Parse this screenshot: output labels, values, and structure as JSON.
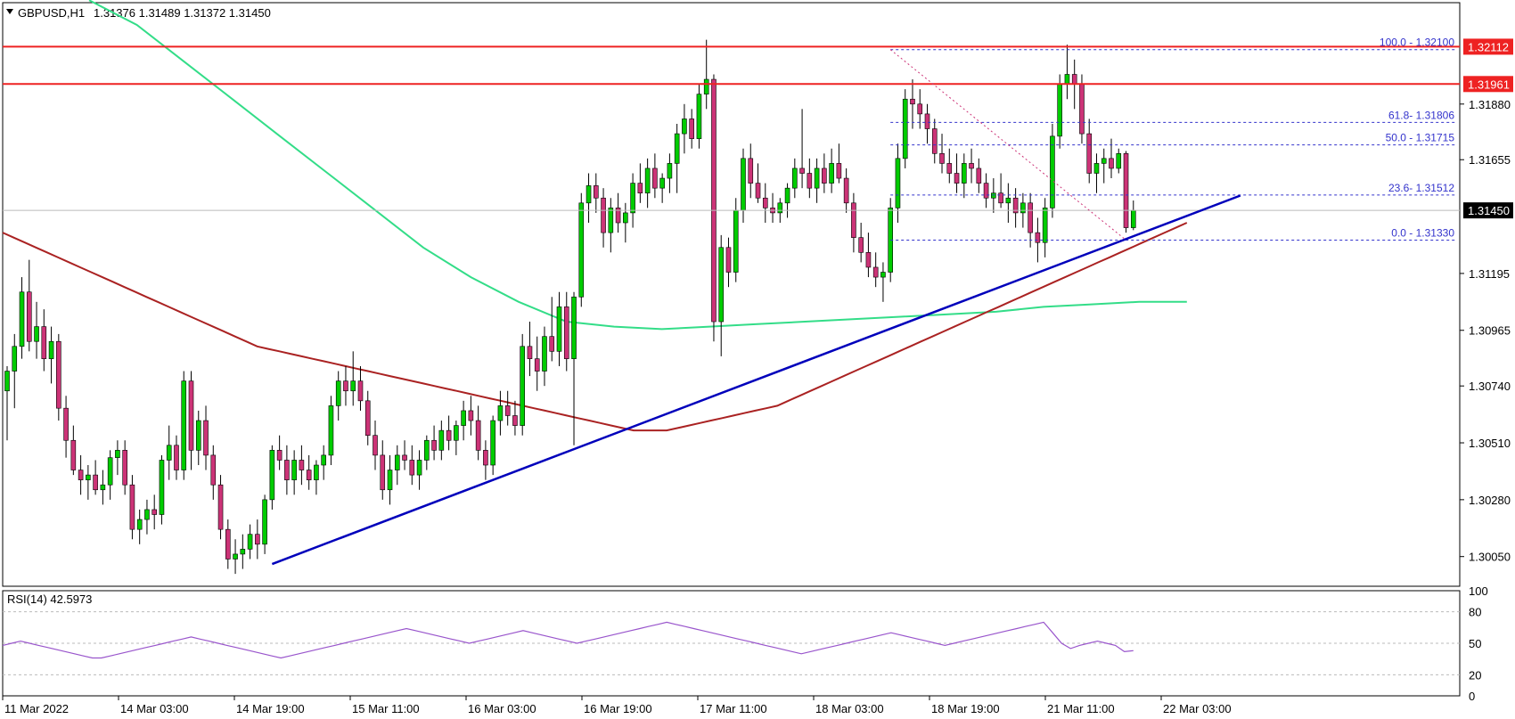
{
  "header": {
    "symbol": "GBPUSD,H1",
    "ohlc": "1.31376 1.31489 1.31372 1.31450"
  },
  "colors": {
    "bull": "#00cc00",
    "bear": "#cc3377",
    "wick": "#000000",
    "ema50": "#aa2222",
    "ema200": "#33dd88",
    "resistance": "#ee2222",
    "trendline": "#0000bb",
    "fib": "#3333cc",
    "rsi": "#9955cc",
    "current_price_bg": "#000000",
    "resistance_label_bg": "#ee2222"
  },
  "chart_data": [
    {
      "type": "candlestick",
      "title": "GBPUSD,H1",
      "x_ticks": [
        "11 Mar 2022",
        "14 Mar 03:00",
        "14 Mar 19:00",
        "15 Mar 11:00",
        "16 Mar 03:00",
        "16 Mar 19:00",
        "17 Mar 11:00",
        "18 Mar 03:00",
        "18 Mar 19:00",
        "21 Mar 11:00",
        "22 Mar 03:00"
      ],
      "y_ticks": [
        "1.31880",
        "1.31655",
        "1.31195",
        "1.30965",
        "1.30740",
        "1.30510",
        "1.30280",
        "1.30050"
      ],
      "ylim": [
        1.2993,
        1.3229
      ],
      "current_price": "1.31450",
      "resistance_levels": [
        {
          "price": 1.32112,
          "label": "1.32112"
        },
        {
          "price": 1.31961,
          "label": "1.31961"
        }
      ],
      "fibonacci": [
        {
          "level": "100.0",
          "price": 1.321,
          "label": "100.0 - 1.32100"
        },
        {
          "level": "61.8",
          "price": 1.31806,
          "label": "61.8- 1.31806"
        },
        {
          "level": "50.0",
          "price": 1.31715,
          "label": "50.0 - 1.31715"
        },
        {
          "level": "23.6",
          "price": 1.31512,
          "label": "23.6- 1.31512"
        },
        {
          "level": "0.0",
          "price": 1.3133,
          "label": "0.0 - 1.31330"
        }
      ],
      "trendline": {
        "start": [
          0,
          1.3002
        ],
        "end": [
          185,
          1.3151
        ]
      },
      "candles": [
        [
          1.3072,
          1.3082,
          1.3052,
          1.308
        ],
        [
          1.308,
          1.3095,
          1.3065,
          1.309
        ],
        [
          1.309,
          1.3118,
          1.3085,
          1.3112
        ],
        [
          1.3112,
          1.3125,
          1.3088,
          1.3092
        ],
        [
          1.3092,
          1.3108,
          1.3085,
          1.3098
        ],
        [
          1.3098,
          1.3105,
          1.308,
          1.3085
        ],
        [
          1.3085,
          1.3098,
          1.3075,
          1.3092
        ],
        [
          1.3092,
          1.3095,
          1.306,
          1.3065
        ],
        [
          1.3065,
          1.307,
          1.3045,
          1.3052
        ],
        [
          1.3052,
          1.3058,
          1.3038,
          1.304
        ],
        [
          1.304,
          1.3046,
          1.303,
          1.3036
        ],
        [
          1.3036,
          1.3042,
          1.3028,
          1.3038
        ],
        [
          1.3038,
          1.3044,
          1.303,
          1.3032
        ],
        [
          1.3032,
          1.304,
          1.3026,
          1.3034
        ],
        [
          1.3034,
          1.3048,
          1.3028,
          1.3045
        ],
        [
          1.3045,
          1.3052,
          1.3038,
          1.3048
        ],
        [
          1.3048,
          1.3052,
          1.303,
          1.3034
        ],
        [
          1.3034,
          1.3038,
          1.3012,
          1.3016
        ],
        [
          1.3016,
          1.3024,
          1.301,
          1.302
        ],
        [
          1.302,
          1.3028,
          1.3014,
          1.3024
        ],
        [
          1.3024,
          1.303,
          1.3016,
          1.3022
        ],
        [
          1.3022,
          1.3046,
          1.3018,
          1.3044
        ],
        [
          1.3044,
          1.3058,
          1.3036,
          1.305
        ],
        [
          1.305,
          1.3054,
          1.3036,
          1.304
        ],
        [
          1.304,
          1.308,
          1.3036,
          1.3076
        ],
        [
          1.3076,
          1.308,
          1.304,
          1.3048
        ],
        [
          1.3048,
          1.3064,
          1.3042,
          1.306
        ],
        [
          1.306,
          1.3066,
          1.304,
          1.3046
        ],
        [
          1.3046,
          1.305,
          1.3028,
          1.3034
        ],
        [
          1.3034,
          1.3038,
          1.3012,
          1.3016
        ],
        [
          1.3016,
          1.302,
          1.3,
          1.3004
        ],
        [
          1.3004,
          1.3012,
          1.2998,
          1.3006
        ],
        [
          1.3006,
          1.3014,
          1.3,
          1.3008
        ],
        [
          1.3008,
          1.3018,
          1.3004,
          1.3014
        ],
        [
          1.3014,
          1.302,
          1.3004,
          1.301
        ],
        [
          1.301,
          1.303,
          1.3006,
          1.3028
        ],
        [
          1.3028,
          1.305,
          1.3024,
          1.3048
        ],
        [
          1.3048,
          1.3054,
          1.304,
          1.3044
        ],
        [
          1.3044,
          1.305,
          1.303,
          1.3036
        ],
        [
          1.3036,
          1.3048,
          1.303,
          1.3044
        ],
        [
          1.3044,
          1.305,
          1.3034,
          1.304
        ],
        [
          1.304,
          1.3046,
          1.3032,
          1.3036
        ],
        [
          1.3036,
          1.3044,
          1.303,
          1.3042
        ],
        [
          1.3042,
          1.305,
          1.3036,
          1.3046
        ],
        [
          1.3046,
          1.307,
          1.3042,
          1.3066
        ],
        [
          1.3066,
          1.308,
          1.306,
          1.3076
        ],
        [
          1.3076,
          1.3082,
          1.3066,
          1.3072
        ],
        [
          1.3072,
          1.3088,
          1.3066,
          1.3076
        ],
        [
          1.3076,
          1.3082,
          1.3064,
          1.3068
        ],
        [
          1.3068,
          1.3072,
          1.305,
          1.3054
        ],
        [
          1.3054,
          1.306,
          1.304,
          1.3046
        ],
        [
          1.3046,
          1.3052,
          1.3028,
          1.3032
        ],
        [
          1.3032,
          1.3046,
          1.3026,
          1.304
        ],
        [
          1.304,
          1.305,
          1.3034,
          1.3046
        ],
        [
          1.3046,
          1.3052,
          1.304,
          1.3044
        ],
        [
          1.3044,
          1.305,
          1.3034,
          1.3038
        ],
        [
          1.3038,
          1.3048,
          1.3032,
          1.3044
        ],
        [
          1.3044,
          1.3054,
          1.304,
          1.3052
        ],
        [
          1.3052,
          1.3058,
          1.3044,
          1.3048
        ],
        [
          1.3048,
          1.306,
          1.3044,
          1.3056
        ],
        [
          1.3056,
          1.3062,
          1.3048,
          1.3052
        ],
        [
          1.3052,
          1.306,
          1.3046,
          1.3058
        ],
        [
          1.3058,
          1.3068,
          1.3052,
          1.3064
        ],
        [
          1.3064,
          1.307,
          1.3054,
          1.306
        ],
        [
          1.306,
          1.3066,
          1.3044,
          1.3048
        ],
        [
          1.3048,
          1.3052,
          1.3036,
          1.3042
        ],
        [
          1.3042,
          1.3062,
          1.3038,
          1.306
        ],
        [
          1.306,
          1.3072,
          1.3054,
          1.3066
        ],
        [
          1.3066,
          1.3072,
          1.3058,
          1.3062
        ],
        [
          1.3062,
          1.3068,
          1.3054,
          1.3058
        ],
        [
          1.3058,
          1.3095,
          1.3054,
          1.309
        ],
        [
          1.309,
          1.31,
          1.3078,
          1.3085
        ],
        [
          1.3085,
          1.3094,
          1.3072,
          1.308
        ],
        [
          1.308,
          1.3098,
          1.3074,
          1.3094
        ],
        [
          1.3094,
          1.311,
          1.3084,
          1.3088
        ],
        [
          1.3088,
          1.3112,
          1.3082,
          1.3106
        ],
        [
          1.3106,
          1.3112,
          1.308,
          1.3085
        ],
        [
          1.3085,
          1.3112,
          1.305,
          1.311
        ],
        [
          1.311,
          1.3152,
          1.3106,
          1.3148
        ],
        [
          1.3148,
          1.316,
          1.314,
          1.3155
        ],
        [
          1.3155,
          1.316,
          1.3144,
          1.315
        ],
        [
          1.315,
          1.3154,
          1.313,
          1.3136
        ],
        [
          1.3136,
          1.315,
          1.3128,
          1.3146
        ],
        [
          1.3146,
          1.3152,
          1.3136,
          1.314
        ],
        [
          1.314,
          1.3148,
          1.3132,
          1.3144
        ],
        [
          1.3144,
          1.316,
          1.3138,
          1.3156
        ],
        [
          1.3156,
          1.3164,
          1.3148,
          1.3152
        ],
        [
          1.3152,
          1.3166,
          1.3146,
          1.3162
        ],
        [
          1.3162,
          1.3168,
          1.315,
          1.3154
        ],
        [
          1.3154,
          1.316,
          1.3148,
          1.3158
        ],
        [
          1.3158,
          1.3168,
          1.3152,
          1.3164
        ],
        [
          1.3164,
          1.318,
          1.3152,
          1.3176
        ],
        [
          1.3176,
          1.3188,
          1.3168,
          1.3182
        ],
        [
          1.3182,
          1.3186,
          1.317,
          1.3174
        ],
        [
          1.3174,
          1.3196,
          1.317,
          1.3192
        ],
        [
          1.3192,
          1.3214,
          1.3186,
          1.3198
        ],
        [
          1.3198,
          1.32,
          1.3092,
          1.31
        ],
        [
          1.31,
          1.3135,
          1.3086,
          1.313
        ],
        [
          1.313,
          1.3134,
          1.3114,
          1.312
        ],
        [
          1.312,
          1.315,
          1.3116,
          1.3145
        ],
        [
          1.3145,
          1.317,
          1.314,
          1.3166
        ],
        [
          1.3166,
          1.3172,
          1.315,
          1.3156
        ],
        [
          1.3156,
          1.3164,
          1.3148,
          1.315
        ],
        [
          1.315,
          1.3156,
          1.314,
          1.3146
        ],
        [
          1.3146,
          1.3152,
          1.314,
          1.3144
        ],
        [
          1.3144,
          1.315,
          1.314,
          1.3148
        ],
        [
          1.3148,
          1.3156,
          1.3142,
          1.3154
        ],
        [
          1.3154,
          1.3166,
          1.315,
          1.3162
        ],
        [
          1.3162,
          1.3186,
          1.3154,
          1.316
        ],
        [
          1.316,
          1.3166,
          1.315,
          1.3154
        ],
        [
          1.3154,
          1.3166,
          1.3148,
          1.3162
        ],
        [
          1.3162,
          1.3168,
          1.3152,
          1.3156
        ],
        [
          1.3156,
          1.317,
          1.3152,
          1.3164
        ],
        [
          1.3164,
          1.3172,
          1.3156,
          1.3158
        ],
        [
          1.3158,
          1.3162,
          1.3144,
          1.3148
        ],
        [
          1.3148,
          1.3152,
          1.3128,
          1.3134
        ],
        [
          1.3134,
          1.314,
          1.3124,
          1.3128
        ],
        [
          1.3128,
          1.3136,
          1.3118,
          1.3122
        ],
        [
          1.3122,
          1.3128,
          1.3114,
          1.3118
        ],
        [
          1.3118,
          1.3124,
          1.3108,
          1.312
        ],
        [
          1.312,
          1.315,
          1.3116,
          1.3146
        ],
        [
          1.3146,
          1.3172,
          1.314,
          1.3166
        ],
        [
          1.3166,
          1.3194,
          1.3162,
          1.319
        ],
        [
          1.319,
          1.3198,
          1.3178,
          1.3188
        ],
        [
          1.3188,
          1.3194,
          1.3178,
          1.3184
        ],
        [
          1.3184,
          1.3188,
          1.3172,
          1.3178
        ],
        [
          1.3178,
          1.3182,
          1.3164,
          1.3168
        ],
        [
          1.3168,
          1.3176,
          1.316,
          1.3164
        ],
        [
          1.3164,
          1.317,
          1.3156,
          1.316
        ],
        [
          1.316,
          1.3168,
          1.3152,
          1.3156
        ],
        [
          1.3156,
          1.3168,
          1.315,
          1.3164
        ],
        [
          1.3164,
          1.317,
          1.3156,
          1.3162
        ],
        [
          1.3162,
          1.3166,
          1.3152,
          1.3156
        ],
        [
          1.3156,
          1.316,
          1.3146,
          1.315
        ],
        [
          1.315,
          1.3158,
          1.3144,
          1.3152
        ],
        [
          1.3152,
          1.316,
          1.3146,
          1.3148
        ],
        [
          1.3148,
          1.3156,
          1.314,
          1.315
        ],
        [
          1.315,
          1.3154,
          1.3138,
          1.3144
        ],
        [
          1.3144,
          1.3152,
          1.3138,
          1.3148
        ],
        [
          1.3148,
          1.3152,
          1.313,
          1.3136
        ],
        [
          1.3136,
          1.3142,
          1.3124,
          1.3132
        ],
        [
          1.3132,
          1.315,
          1.3126,
          1.3146
        ],
        [
          1.3146,
          1.318,
          1.3142,
          1.3175
        ],
        [
          1.3175,
          1.32,
          1.317,
          1.3196
        ],
        [
          1.3196,
          1.3212,
          1.319,
          1.32
        ],
        [
          1.32,
          1.3206,
          1.3186,
          1.3196
        ],
        [
          1.3196,
          1.32,
          1.3172,
          1.3176
        ],
        [
          1.3176,
          1.3182,
          1.3156,
          1.316
        ],
        [
          1.316,
          1.3168,
          1.3152,
          1.3164
        ],
        [
          1.3164,
          1.317,
          1.3156,
          1.3166
        ],
        [
          1.3166,
          1.3174,
          1.3158,
          1.3162
        ],
        [
          1.3162,
          1.317,
          1.316,
          1.3168
        ],
        [
          1.3168,
          1.3169,
          1.3136,
          1.3138
        ],
        [
          1.3138,
          1.3149,
          1.3137,
          1.3145
        ]
      ],
      "ema50": [
        1.3136,
        1.3134,
        1.3132,
        1.313,
        1.3128,
        1.3126,
        1.3124,
        1.3122,
        1.312,
        1.3118,
        1.3116,
        1.3114,
        1.3112,
        1.311,
        1.3108,
        1.3106,
        1.3104,
        1.3102,
        1.31,
        1.3098,
        1.3096,
        1.3094,
        1.3092,
        1.309,
        1.3089,
        1.3088,
        1.3087,
        1.3086,
        1.3085,
        1.3084,
        1.3083,
        1.3082,
        1.3081,
        1.308,
        1.3079,
        1.3078,
        1.3077,
        1.3076,
        1.3075,
        1.3074,
        1.3073,
        1.3072,
        1.3071,
        1.307,
        1.3069,
        1.3068,
        1.3067,
        1.3066,
        1.3065,
        1.3064,
        1.3063,
        1.3062,
        1.3061,
        1.306,
        1.3059,
        1.3058,
        1.3057,
        1.3056,
        1.3056,
        1.3056,
        1.3056,
        1.3057,
        1.3058,
        1.3059,
        1.306,
        1.3061,
        1.3062,
        1.3063,
        1.3064,
        1.3065,
        1.3066,
        1.3068,
        1.307,
        1.3072,
        1.3074,
        1.3076,
        1.3078,
        1.308,
        1.3082,
        1.3084,
        1.3086,
        1.3088,
        1.309,
        1.3092,
        1.3094,
        1.3096,
        1.3098,
        1.31,
        1.3102,
        1.3104,
        1.3106,
        1.3108,
        1.311,
        1.3112,
        1.3114,
        1.3116,
        1.3118,
        1.312,
        1.3122,
        1.3124,
        1.3126,
        1.3128,
        1.313,
        1.3132,
        1.3134,
        1.3136,
        1.3138,
        1.314
      ],
      "ema200": [
        1.323,
        1.322,
        1.3205,
        1.319,
        1.3175,
        1.316,
        1.3145,
        1.313,
        1.3118,
        1.3108,
        1.31,
        1.3098,
        1.3097,
        1.3098,
        1.3099,
        1.31,
        1.3101,
        1.3102,
        1.3103,
        1.3104,
        1.3106,
        1.3107,
        1.3108,
        1.3108
      ]
    },
    {
      "type": "line",
      "title": "RSI(14) 42.5973",
      "y_ticks": [
        "100",
        "80",
        "50",
        "20",
        "0"
      ],
      "ylim": [
        0,
        100
      ],
      "values": [
        48,
        50,
        52,
        50,
        48,
        46,
        44,
        42,
        40,
        38,
        36,
        36,
        38,
        40,
        42,
        44,
        46,
        48,
        50,
        52,
        54,
        56,
        54,
        52,
        50,
        48,
        46,
        44,
        42,
        40,
        38,
        36,
        38,
        40,
        42,
        44,
        46,
        48,
        50,
        52,
        54,
        56,
        58,
        60,
        62,
        64,
        62,
        60,
        58,
        56,
        54,
        52,
        50,
        52,
        54,
        56,
        58,
        60,
        62,
        60,
        58,
        56,
        54,
        52,
        50,
        52,
        54,
        56,
        58,
        60,
        62,
        64,
        66,
        68,
        70,
        68,
        66,
        64,
        62,
        60,
        58,
        56,
        54,
        52,
        50,
        48,
        46,
        44,
        42,
        40,
        42,
        44,
        46,
        48,
        50,
        52,
        54,
        56,
        58,
        60,
        58,
        56,
        54,
        52,
        50,
        48,
        50,
        52,
        54,
        56,
        58,
        60,
        62,
        64,
        66,
        68,
        70,
        60,
        50,
        45,
        48,
        50,
        52,
        50,
        48,
        42,
        43
      ]
    }
  ]
}
